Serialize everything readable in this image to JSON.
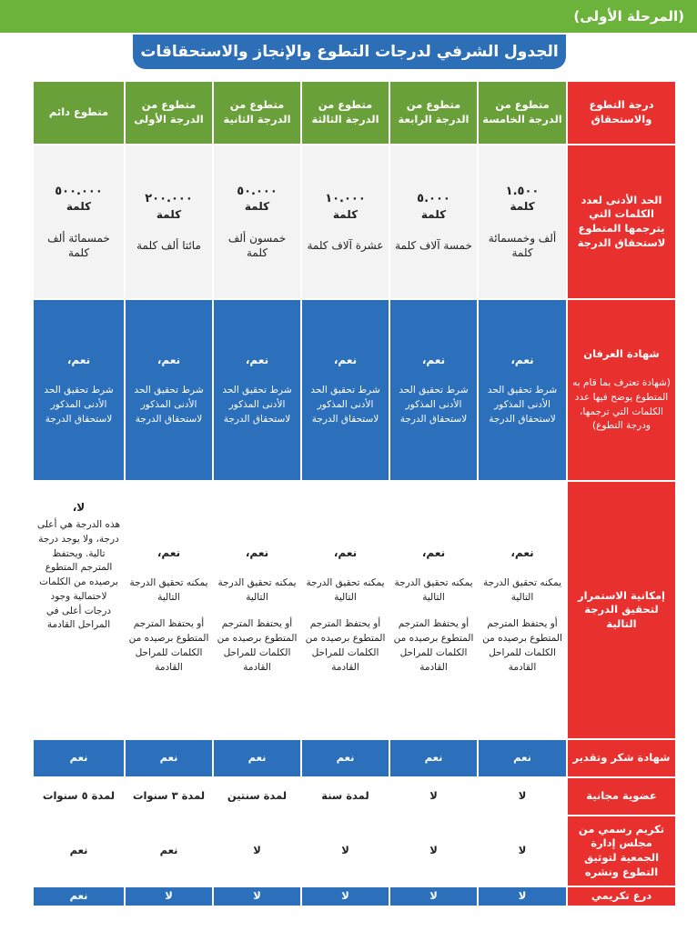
{
  "header": {
    "stage": "(المرحلة الأولى)"
  },
  "title": "الجدول الشرفي لدرجات التطوع والإنجاز والاستحقاقات",
  "colors": {
    "green": "#6aa03a",
    "red": "#e8302f",
    "blue": "#2c70bb",
    "grey": "#f3f3f3"
  },
  "columns": {
    "corner": "درجة التطوع والاستحقاق",
    "levels": [
      "متطوع من الدرجة الخامسة",
      "متطوع من الدرجة الرابعة",
      "متطوع من الدرجة الثالثة",
      "متطوع من الدرجة الثانية",
      "متطوع من الدرجة الأولى",
      "متطوع دائم"
    ]
  },
  "rows": {
    "min_words": {
      "label": "الحد الأدنى لعدد الكلمات التي يترجمها المتطوع لاستحقاق الدرجة",
      "cells": [
        {
          "num": "١.٥٠٠",
          "unit": "كلمة",
          "words": "ألف وخمسمائة كلمة"
        },
        {
          "num": "٥.٠٠٠",
          "unit": "كلمة",
          "words": "خمسة آلاف كلمة"
        },
        {
          "num": "١٠.٠٠٠",
          "unit": "كلمة",
          "words": "عشرة آلاف كلمة"
        },
        {
          "num": "٥٠.٠٠٠",
          "unit": "كلمة",
          "words": "خمسون ألف كلمة"
        },
        {
          "num": "٢٠٠.٠٠٠",
          "unit": "كلمة",
          "words": "مائتا ألف كلمة"
        },
        {
          "num": "٥٠٠.٠٠٠",
          "unit": "كلمة",
          "words": "خمسمائة ألف كلمة"
        }
      ]
    },
    "gratitude_cert": {
      "label": "شهادة العرفان",
      "note": "(شهادة تعترف بما قام به المتطوع يوضح فيها عدد الكلمات التي ترجمها، ودرجة التطوع)",
      "cells": [
        {
          "yes": "نعم،",
          "txt": "شرط تحقيق الحد الأدنى المذكور لاستحقاق الدرجة"
        },
        {
          "yes": "نعم،",
          "txt": "شرط تحقيق الحد الأدنى المذكور لاستحقاق الدرجة"
        },
        {
          "yes": "نعم،",
          "txt": "شرط تحقيق الحد الأدنى المذكور لاستحقاق الدرجة"
        },
        {
          "yes": "نعم،",
          "txt": "شرط تحقيق الحد الأدنى المذكور لاستحقاق الدرجة"
        },
        {
          "yes": "نعم،",
          "txt": "شرط تحقيق الحد الأدنى المذكور لاستحقاق الدرجة"
        },
        {
          "yes": "نعم،",
          "txt": "شرط تحقيق الحد الأدنى المذكور لاستحقاق الدرجة"
        }
      ]
    },
    "continuation": {
      "label": "إمكانية الاستمرار لتحقيق الدرجة التالية",
      "cells": [
        {
          "yes": "نعم،",
          "txt": "يمكنه تحقيق الدرجة التالية",
          "txt2": "أو يحتفظ المترجم المتطوع برصيده من الكلمات للمراحل القادمة"
        },
        {
          "yes": "نعم،",
          "txt": "يمكنه تحقيق الدرجة التالية",
          "txt2": "أو يحتفظ المترجم المتطوع برصيده من الكلمات للمراحل القادمة"
        },
        {
          "yes": "نعم،",
          "txt": "يمكنه تحقيق الدرجة التالية",
          "txt2": "أو يحتفظ المترجم المتطوع برصيده من الكلمات للمراحل القادمة"
        },
        {
          "yes": "نعم،",
          "txt": "يمكنه تحقيق الدرجة التالية",
          "txt2": "أو يحتفظ المترجم المتطوع برصيده من الكلمات للمراحل القادمة"
        },
        {
          "yes": "نعم،",
          "txt": "يمكنه تحقيق الدرجة التالية",
          "txt2": "أو يحتفظ المترجم المتطوع برصيده من الكلمات للمراحل القادمة"
        },
        {
          "yes": "لا،",
          "txt": "هذه الدرجة هي أعلى درجة، ولا يوجد درجة تالية. ويحتفظ المترجم المتطوع برصيده من الكلمات لاحتمالية وجود درجات أعلى في المراحل القادمة",
          "txt2": ""
        }
      ]
    },
    "thanks_cert": {
      "label": "شهادة شكر وتقدير",
      "cells": [
        "نعم",
        "نعم",
        "نعم",
        "نعم",
        "نعم",
        "نعم"
      ]
    },
    "free_membership": {
      "label": "عضوية مجانية",
      "cells": [
        "لا",
        "لا",
        "لمدة سنة",
        "لمدة سنتين",
        "لمدة ٣ سنوات",
        "لمدة ٥ سنوات"
      ]
    },
    "board_honor": {
      "label": "تكريم رسمي من مجلس إدارة الجمعية لتوثيق التطوع ونشره",
      "cells": [
        "لا",
        "لا",
        "لا",
        "لا",
        "نعم",
        "نعم"
      ]
    },
    "shield": {
      "label": "درع تكريمي",
      "cells": [
        "لا",
        "لا",
        "لا",
        "لا",
        "لا",
        "نعم"
      ]
    }
  }
}
